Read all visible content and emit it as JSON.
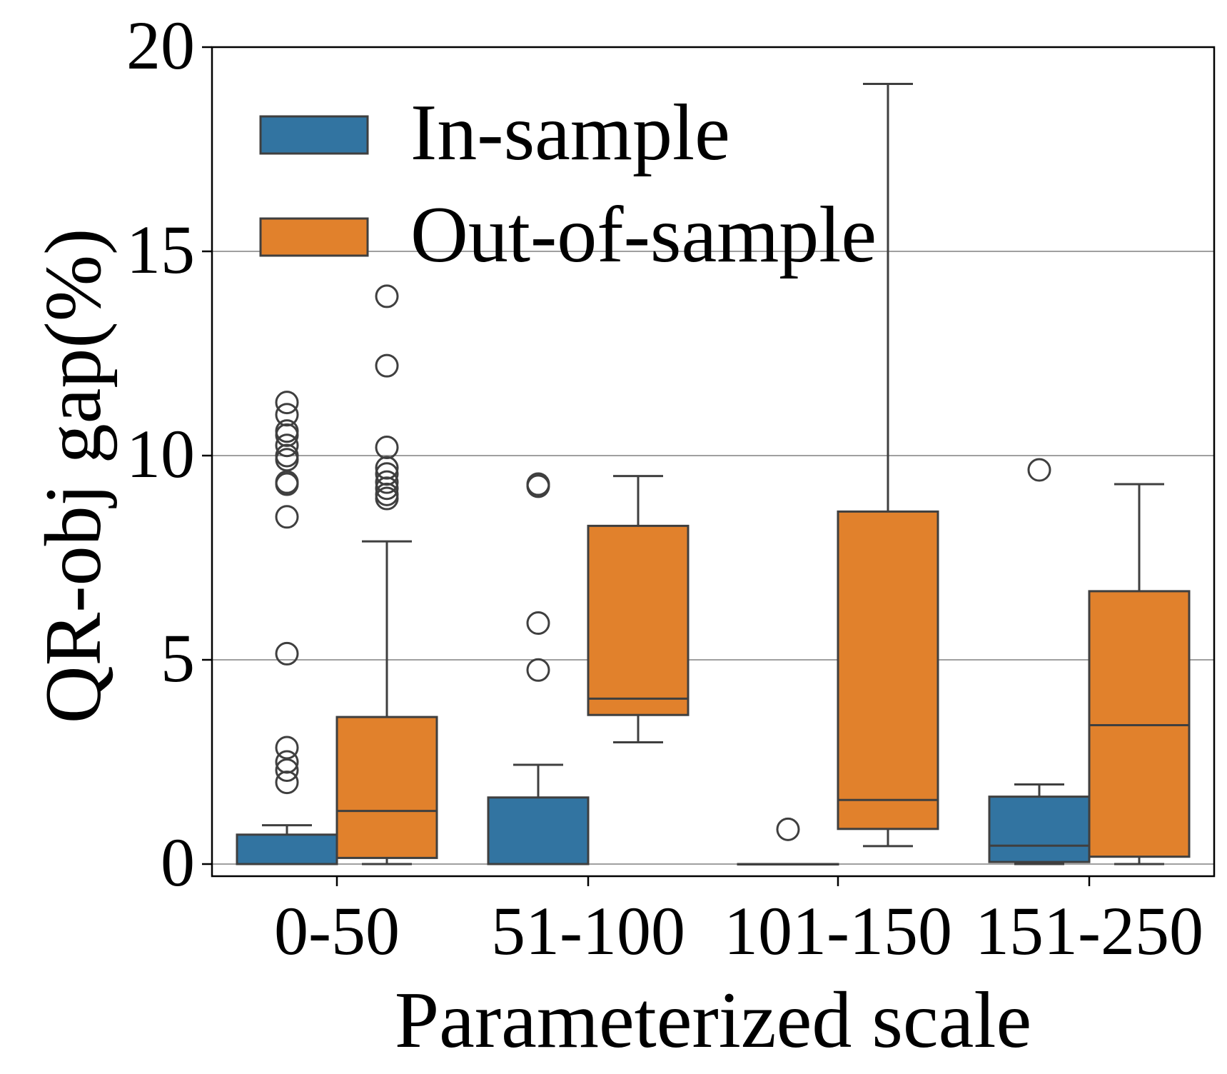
{
  "chart_data": {
    "type": "boxplot",
    "title": "",
    "xlabel": "Parameterized scale",
    "ylabel": "QR-obj gap(%)",
    "ylim": [
      -0.3,
      20
    ],
    "yticks": [
      0,
      5,
      10,
      15,
      20
    ],
    "grid": "horizontal",
    "legend_position": "top-left",
    "categories": [
      "0-50",
      "51-100",
      "101-150",
      "151-250"
    ],
    "series": [
      {
        "name": "In-sample",
        "color": "#3274a1",
        "boxes": [
          {
            "whisker_low": 0.0,
            "q1": 0.0,
            "median": 0.0,
            "q3": 0.72,
            "whisker_high": 0.95,
            "outliers": [
              2.0,
              2.3,
              2.5,
              2.85,
              5.15,
              8.5,
              9.3,
              9.35,
              9.9,
              10.0,
              10.25,
              10.5,
              10.6,
              11.0,
              11.3
            ]
          },
          {
            "whisker_low": 0.0,
            "q1": 0.0,
            "median": 0.0,
            "q3": 1.63,
            "whisker_high": 2.43,
            "outliers": [
              4.75,
              5.9,
              9.25,
              9.3
            ]
          },
          {
            "whisker_low": 0.0,
            "q1": 0.0,
            "median": 0.0,
            "q3": 0.0,
            "whisker_high": 0.0,
            "outliers": [
              0.85
            ]
          },
          {
            "whisker_low": 0.0,
            "q1": 0.05,
            "median": 0.45,
            "q3": 1.65,
            "whisker_high": 1.95,
            "outliers": [
              9.65
            ]
          }
        ]
      },
      {
        "name": "Out-of-sample",
        "color": "#e1812c",
        "boxes": [
          {
            "whisker_low": 0.0,
            "q1": 0.15,
            "median": 1.3,
            "q3": 3.6,
            "whisker_high": 7.9,
            "outliers": [
              8.95,
              9.05,
              9.2,
              9.35,
              9.55,
              9.7,
              10.2,
              12.2,
              13.9
            ]
          },
          {
            "whisker_low": 2.98,
            "q1": 3.65,
            "median": 4.05,
            "q3": 8.28,
            "whisker_high": 9.5,
            "outliers": []
          },
          {
            "whisker_low": 0.44,
            "q1": 0.86,
            "median": 1.57,
            "q3": 8.63,
            "whisker_high": 19.1,
            "outliers": []
          },
          {
            "whisker_low": 0.0,
            "q1": 0.18,
            "median": 3.4,
            "q3": 6.68,
            "whisker_high": 9.3,
            "outliers": []
          }
        ]
      }
    ]
  }
}
